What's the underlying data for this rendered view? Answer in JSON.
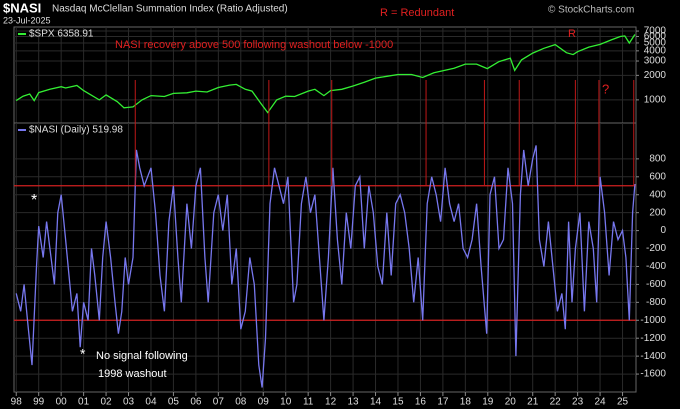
{
  "header": {
    "symbol": "$NASI",
    "title": "Nasdaq McClellan Summation Index (Ratio Adjusted)",
    "date": "23-Jul-2025",
    "note": "R = Redundant",
    "copyright": "© StockCharts.com"
  },
  "chart_data": [
    {
      "type": "line",
      "log_scale": true,
      "grid": true,
      "annotations": [
        "NASI recovery above 500 following washout below -1000",
        "R",
        "?"
      ],
      "xlim": [
        1997.9,
        2025.6
      ],
      "ylim": [
        520,
        7850
      ],
      "yticks": [
        1000,
        2000,
        3000,
        4000,
        5000,
        6000,
        7000
      ],
      "series": [
        {
          "name": "$SPX 6358.91",
          "color": "#33ee33",
          "x": [
            1998.0,
            1998.3,
            1998.6,
            1998.8,
            1999.0,
            1999.5,
            2000.0,
            2000.2,
            2000.7,
            2001.0,
            2001.7,
            2002.0,
            2002.5,
            2002.8,
            2003.2,
            2003.6,
            2004.0,
            2004.6,
            2005.0,
            2005.6,
            2006.0,
            2006.5,
            2007.0,
            2007.5,
            2007.8,
            2008.2,
            2008.5,
            2008.9,
            2009.2,
            2009.6,
            2010.0,
            2010.4,
            2011.0,
            2011.3,
            2011.7,
            2012.0,
            2012.5,
            2013.0,
            2013.5,
            2014.0,
            2014.5,
            2015.0,
            2015.6,
            2016.1,
            2016.6,
            2017.0,
            2017.5,
            2018.0,
            2018.5,
            2018.98,
            2019.5,
            2020.0,
            2020.2,
            2020.5,
            2021.0,
            2021.5,
            2022.0,
            2022.5,
            2022.8,
            2023.0,
            2023.5,
            2024.0,
            2024.5,
            2024.9,
            2025.1,
            2025.3,
            2025.55
          ],
          "values": [
            980,
            1110,
            1180,
            980,
            1230,
            1350,
            1450,
            1400,
            1500,
            1300,
            1000,
            1150,
            950,
            800,
            820,
            1000,
            1130,
            1100,
            1200,
            1220,
            1280,
            1250,
            1420,
            1520,
            1550,
            1350,
            1280,
            900,
            700,
            1000,
            1110,
            1100,
            1280,
            1350,
            1130,
            1300,
            1350,
            1480,
            1650,
            1850,
            1950,
            2050,
            2050,
            1880,
            2150,
            2280,
            2450,
            2750,
            2750,
            2420,
            2950,
            3250,
            2300,
            3100,
            3750,
            4300,
            4770,
            3800,
            3600,
            3900,
            4450,
            4800,
            5450,
            6000,
            6100,
            5000,
            6358.91
          ]
        }
      ]
    },
    {
      "type": "line",
      "grid": true,
      "annotations": [
        "*",
        "*",
        "No signal following",
        "1998 washout"
      ],
      "threshold_lines": [
        500,
        -1000
      ],
      "signal_x": [
        2003.3,
        2009.25,
        2012.05,
        2016.25,
        2018.85,
        2020.4,
        2022.9,
        2023.95,
        2025.5
      ],
      "xlim": [
        1997.9,
        2025.6
      ],
      "xticks": [
        {
          "value": 1998,
          "label": "98"
        },
        {
          "value": 1999,
          "label": "99"
        },
        {
          "value": 2000,
          "label": "00"
        },
        {
          "value": 2001,
          "label": "01"
        },
        {
          "value": 2002,
          "label": "02"
        },
        {
          "value": 2003,
          "label": "03"
        },
        {
          "value": 2004,
          "label": "04"
        },
        {
          "value": 2005,
          "label": "05"
        },
        {
          "value": 2006,
          "label": "06"
        },
        {
          "value": 2007,
          "label": "07"
        },
        {
          "value": 2008,
          "label": "08"
        },
        {
          "value": 2009,
          "label": "09"
        },
        {
          "value": 2010,
          "label": "10"
        },
        {
          "value": 2011,
          "label": "11"
        },
        {
          "value": 2012,
          "label": "12"
        },
        {
          "value": 2013,
          "label": "13"
        },
        {
          "value": 2014,
          "label": "14"
        },
        {
          "value": 2015,
          "label": "15"
        },
        {
          "value": 2016,
          "label": "16"
        },
        {
          "value": 2017,
          "label": "17"
        },
        {
          "value": 2018,
          "label": "18"
        },
        {
          "value": 2019,
          "label": "19"
        },
        {
          "value": 2020,
          "label": "20"
        },
        {
          "value": 2021,
          "label": "21"
        },
        {
          "value": 2022,
          "label": "22"
        },
        {
          "value": 2023,
          "label": "23"
        },
        {
          "value": 2024,
          "label": "24"
        },
        {
          "value": 2025,
          "label": "25"
        }
      ],
      "ylim": [
        -1800,
        1200
      ],
      "yticks": [
        -1600,
        -1400,
        -1200,
        -1000,
        -800,
        -600,
        -400,
        -200,
        0,
        200,
        400,
        600,
        800
      ],
      "series": [
        {
          "name": "$NASI (Daily) 519.98",
          "color": "#7777ee",
          "x": [
            1998.0,
            1998.2,
            1998.35,
            1998.5,
            1998.7,
            1998.9,
            1999.0,
            1999.2,
            1999.35,
            1999.5,
            1999.7,
            1999.85,
            2000.0,
            2000.2,
            2000.35,
            2000.5,
            2000.7,
            2000.85,
            2001.0,
            2001.2,
            2001.35,
            2001.5,
            2001.7,
            2001.85,
            2002.0,
            2002.2,
            2002.4,
            2002.55,
            2002.7,
            2002.85,
            2003.0,
            2003.2,
            2003.35,
            2003.5,
            2003.7,
            2003.85,
            2004.0,
            2004.2,
            2004.4,
            2004.6,
            2004.8,
            2005.0,
            2005.2,
            2005.35,
            2005.6,
            2005.8,
            2006.0,
            2006.2,
            2006.4,
            2006.55,
            2006.8,
            2007.0,
            2007.2,
            2007.4,
            2007.6,
            2007.8,
            2008.0,
            2008.2,
            2008.4,
            2008.6,
            2008.8,
            2008.95,
            2009.1,
            2009.3,
            2009.5,
            2009.7,
            2009.9,
            2010.1,
            2010.35,
            2010.5,
            2010.7,
            2010.9,
            2011.1,
            2011.3,
            2011.5,
            2011.7,
            2011.9,
            2012.1,
            2012.3,
            2012.5,
            2012.7,
            2012.9,
            2013.1,
            2013.3,
            2013.5,
            2013.7,
            2013.9,
            2014.1,
            2014.3,
            2014.5,
            2014.7,
            2014.9,
            2015.1,
            2015.3,
            2015.5,
            2015.7,
            2015.9,
            2016.1,
            2016.3,
            2016.5,
            2016.7,
            2016.9,
            2017.1,
            2017.3,
            2017.5,
            2017.7,
            2017.9,
            2018.1,
            2018.3,
            2018.5,
            2018.7,
            2018.95,
            2019.1,
            2019.3,
            2019.5,
            2019.7,
            2019.9,
            2020.1,
            2020.25,
            2020.45,
            2020.6,
            2020.8,
            2021.0,
            2021.15,
            2021.3,
            2021.5,
            2021.7,
            2021.9,
            2022.1,
            2022.3,
            2022.45,
            2022.6,
            2022.75,
            2022.9,
            2023.1,
            2023.3,
            2023.5,
            2023.7,
            2023.85,
            2024.0,
            2024.2,
            2024.4,
            2024.6,
            2024.8,
            2025.0,
            2025.15,
            2025.3,
            2025.45,
            2025.55
          ],
          "values": [
            -700,
            -900,
            -600,
            -1000,
            -1500,
            -400,
            50,
            -300,
            100,
            -200,
            -600,
            200,
            400,
            -100,
            -500,
            -900,
            -700,
            -1300,
            -800,
            -1000,
            -200,
            -500,
            -1000,
            -300,
            100,
            -300,
            -800,
            -1150,
            -900,
            -300,
            -600,
            -300,
            900,
            700,
            500,
            600,
            700,
            200,
            -500,
            -900,
            100,
            500,
            -300,
            -800,
            300,
            -200,
            500,
            700,
            -300,
            -800,
            200,
            400,
            0,
            400,
            -600,
            -200,
            -1100,
            -900,
            -300,
            -600,
            -1500,
            -1750,
            -1200,
            300,
            700,
            500,
            300,
            600,
            -800,
            -600,
            300,
            600,
            200,
            400,
            -300,
            -1000,
            -300,
            700,
            -100,
            -600,
            200,
            -200,
            500,
            600,
            -200,
            500,
            200,
            -400,
            -600,
            200,
            -500,
            300,
            400,
            200,
            -200,
            -800,
            -300,
            -1000,
            300,
            600,
            400,
            100,
            700,
            300,
            100,
            300,
            -200,
            -300,
            -100,
            300,
            -400,
            -1150,
            400,
            600,
            -200,
            -100,
            700,
            300,
            -1400,
            400,
            900,
            500,
            800,
            950,
            -100,
            -400,
            100,
            -400,
            -900,
            -700,
            -1100,
            100,
            -800,
            -200,
            200,
            -900,
            100,
            -200,
            -800,
            600,
            200,
            -500,
            100,
            -100,
            0,
            -300,
            -1000,
            200,
            519.98
          ]
        }
      ]
    }
  ]
}
